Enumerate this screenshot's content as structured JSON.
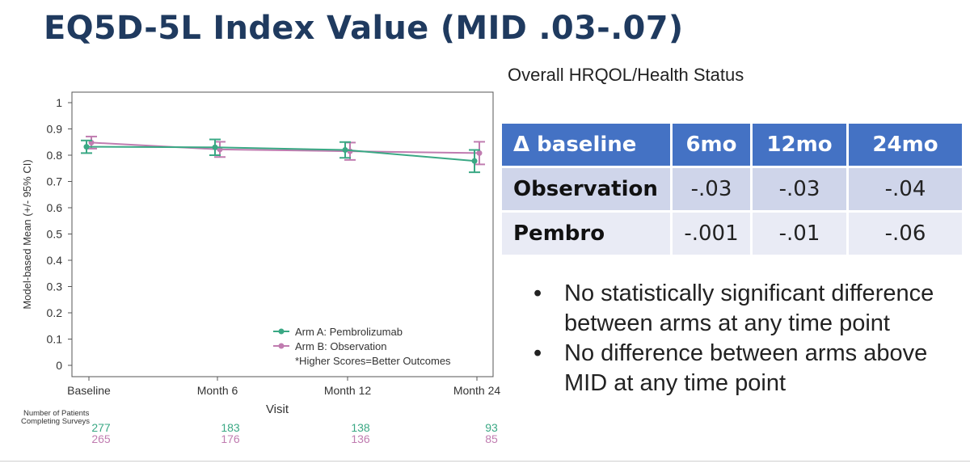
{
  "slide": {
    "title": "EQ5D-5L Index Value (MID .03-.07)",
    "subtitle": "Overall HRQOL/Health Status"
  },
  "chart_data": {
    "type": "line",
    "title": "",
    "xlabel": "Visit",
    "ylabel": "Model-based Mean (+/- 95% CI)",
    "ylim": [
      0,
      1
    ],
    "yticks": [
      "0",
      "0.1",
      "0.2",
      "0.3",
      "0.4",
      "0.5",
      "0.6",
      "0.7",
      "0.8",
      "0.9",
      "1"
    ],
    "categories": [
      "Baseline",
      "Month 6",
      "Month 12",
      "Month 24"
    ],
    "grid": false,
    "legend_position": "bottom-right",
    "series": [
      {
        "name": "Arm A: Pembrolizumab",
        "color": "#3aa884",
        "values": [
          0.832,
          0.83,
          0.82,
          0.778
        ],
        "ci_low": [
          0.808,
          0.8,
          0.79,
          0.735
        ],
        "ci_high": [
          0.856,
          0.86,
          0.85,
          0.82
        ]
      },
      {
        "name": "Arm B: Observation",
        "color": "#c07cb0",
        "values": [
          0.848,
          0.822,
          0.815,
          0.808
        ],
        "ci_low": [
          0.825,
          0.793,
          0.782,
          0.765
        ],
        "ci_high": [
          0.871,
          0.851,
          0.848,
          0.851
        ]
      }
    ],
    "legend_note": "*Higher Scores=Better Outcomes",
    "patients": {
      "label_line1": "Number of Patients",
      "label_line2": "Completing Surveys",
      "arm_a": [
        "277",
        "183",
        "138",
        "93"
      ],
      "arm_b": [
        "265",
        "176",
        "136",
        "85"
      ]
    }
  },
  "table": {
    "headers": [
      "Δ baseline",
      "6mo",
      "12mo",
      "24mo"
    ],
    "rows": [
      {
        "label": "Observation",
        "values": [
          "-.03",
          "-.03",
          "-.04"
        ]
      },
      {
        "label": "Pembro",
        "values": [
          "-.001",
          "-.01",
          "-.06"
        ]
      }
    ]
  },
  "bullets": [
    "No statistically significant difference between arms at any time point",
    "No difference between arms above MID at any time point"
  ],
  "colors": {
    "title": "#1f3a5f",
    "table_header": "#4472c4",
    "table_row_1": "#cfd5ea",
    "table_row_2": "#e9ebf5"
  }
}
